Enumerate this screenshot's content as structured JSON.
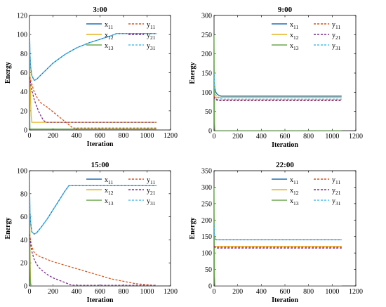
{
  "colors": {
    "x11": "#1f6fb5",
    "x12": "#e6b420",
    "x13": "#6aa84f",
    "y11": "#d9541e",
    "y21": "#7e2f8e",
    "y31": "#4dbeee"
  },
  "chart_data": [
    {
      "type": "line",
      "title": "3:00",
      "xlabel": "Iteration",
      "ylabel": "Energy",
      "xlim": [
        0,
        1200
      ],
      "ylim": [
        0,
        120
      ],
      "xticks": [
        0,
        200,
        400,
        600,
        800,
        1000,
        1200
      ],
      "yticks": [
        0,
        20,
        40,
        60,
        80,
        100,
        120
      ],
      "legend": "top-right",
      "series": [
        {
          "name": "x11",
          "label_base": "x",
          "label_sub": "11",
          "dash": false,
          "color_key": "x11",
          "x": [
            0,
            2,
            4,
            10,
            20,
            40,
            60,
            100,
            150,
            200,
            300,
            400,
            500,
            600,
            700,
            740,
            800,
            900,
            1000,
            1080
          ],
          "y": [
            105,
            95,
            80,
            66,
            57,
            52,
            53,
            58,
            64,
            70,
            79,
            86,
            91,
            95,
            99,
            101,
            101,
            101,
            101,
            101
          ]
        },
        {
          "name": "x12",
          "label_base": "x",
          "label_sub": "12",
          "dash": false,
          "color_key": "x12",
          "x": [
            0,
            2,
            4,
            8,
            10,
            14,
            20,
            40,
            80,
            150,
            200,
            300,
            400,
            500,
            600,
            700,
            800,
            900,
            1000,
            1080
          ],
          "y": [
            100,
            82,
            60,
            40,
            30,
            15,
            8,
            8,
            8,
            8,
            8,
            8,
            8,
            8,
            8,
            8,
            8,
            8,
            8,
            8
          ]
        },
        {
          "name": "x13",
          "label_base": "x",
          "label_sub": "13",
          "dash": false,
          "color_key": "x13",
          "x": [
            0,
            2,
            4,
            6,
            8,
            10,
            12,
            14,
            20,
            40,
            80,
            150,
            300,
            500,
            700,
            900,
            1080
          ],
          "y": [
            105,
            20,
            2,
            1,
            1,
            1,
            1,
            1,
            1,
            1,
            1,
            1,
            1,
            1,
            1,
            1,
            1
          ]
        },
        {
          "name": "y11",
          "label_base": "y",
          "label_sub": "11",
          "dash": true,
          "color_key": "y11",
          "x": [
            0,
            5,
            10,
            20,
            40,
            60,
            80,
            100,
            150,
            200,
            250,
            300,
            350,
            370,
            400,
            500,
            600,
            700,
            800,
            900,
            1000,
            1080
          ],
          "y": [
            56,
            55,
            52,
            48,
            40,
            35,
            31,
            28,
            24,
            19,
            14,
            9,
            4,
            2,
            2,
            2,
            2,
            2,
            2,
            2,
            2,
            2
          ]
        },
        {
          "name": "y21",
          "label_base": "y",
          "label_sub": "21",
          "dash": true,
          "color_key": "y21",
          "x": [
            0,
            5,
            10,
            20,
            40,
            60,
            80,
            100,
            120,
            140,
            150,
            200,
            300,
            400,
            500,
            600,
            700,
            800,
            900,
            1000,
            1080
          ],
          "y": [
            55,
            52,
            48,
            42,
            32,
            25,
            19,
            14,
            10,
            8,
            8,
            8,
            8,
            8,
            8,
            8,
            8,
            8,
            8,
            8,
            8
          ]
        },
        {
          "name": "y31",
          "label_base": "y",
          "label_sub": "31",
          "dash": true,
          "color_key": "y31",
          "x": [
            0,
            2,
            4,
            10,
            20,
            40,
            60,
            100,
            150,
            200,
            300,
            400,
            500,
            600,
            700,
            740,
            800,
            900,
            1000,
            1080
          ],
          "y": [
            105,
            95,
            80,
            66,
            57,
            52,
            53,
            58,
            64,
            70,
            79,
            86,
            91,
            95,
            99,
            101,
            101,
            101,
            101,
            101
          ]
        }
      ]
    },
    {
      "type": "line",
      "title": "9:00",
      "xlabel": "Iteration",
      "ylabel": "Energy",
      "xlim": [
        0,
        1200
      ],
      "ylim": [
        0,
        300
      ],
      "xticks": [
        0,
        200,
        400,
        600,
        800,
        1000,
        1200
      ],
      "yticks": [
        0,
        50,
        100,
        150,
        200,
        250,
        300
      ],
      "legend": "top-right",
      "series": [
        {
          "name": "x11",
          "label_base": "x",
          "label_sub": "11",
          "dash": false,
          "color_key": "x11",
          "x": [
            0,
            2,
            5,
            10,
            20,
            40,
            60,
            80,
            200,
            500,
            800,
            1080
          ],
          "y": [
            150,
            130,
            115,
            105,
            97,
            92,
            90,
            90,
            90,
            90,
            90,
            90
          ]
        },
        {
          "name": "x12",
          "label_base": "x",
          "label_sub": "12",
          "dash": false,
          "color_key": "x12",
          "x": [
            0,
            2,
            5,
            10,
            20,
            40,
            60,
            200,
            500,
            800,
            1080
          ],
          "y": [
            90,
            88,
            87,
            87,
            87,
            87,
            87,
            87,
            87,
            87,
            87
          ]
        },
        {
          "name": "x13",
          "label_base": "x",
          "label_sub": "13",
          "dash": false,
          "color_key": "x13",
          "x": [
            0,
            2,
            4,
            6,
            8,
            10,
            14,
            20,
            40,
            200,
            500,
            800,
            1080
          ],
          "y": [
            250,
            120,
            20,
            3,
            0,
            0,
            0,
            0,
            0,
            0,
            0,
            0,
            0
          ]
        },
        {
          "name": "y11",
          "label_base": "y",
          "label_sub": "11",
          "dash": true,
          "color_key": "y11",
          "x": [
            0,
            5,
            10,
            20,
            40,
            60,
            80,
            200,
            500,
            800,
            1080
          ],
          "y": [
            90,
            86,
            84,
            82,
            80,
            80,
            80,
            80,
            80,
            80,
            80
          ]
        },
        {
          "name": "y21",
          "label_base": "y",
          "label_sub": "21",
          "dash": true,
          "color_key": "y21",
          "x": [
            0,
            5,
            10,
            20,
            40,
            60,
            80,
            200,
            500,
            800,
            1080
          ],
          "y": [
            88,
            84,
            82,
            80,
            78,
            78,
            78,
            78,
            78,
            78,
            78
          ]
        },
        {
          "name": "y31",
          "label_base": "y",
          "label_sub": "31",
          "dash": true,
          "color_key": "y31",
          "x": [
            0,
            2,
            5,
            10,
            20,
            40,
            60,
            80,
            200,
            500,
            800,
            1080
          ],
          "y": [
            150,
            128,
            110,
            98,
            90,
            85,
            83,
            82,
            82,
            82,
            82,
            82
          ]
        }
      ]
    },
    {
      "type": "line",
      "title": "15:00",
      "xlabel": "Iteration",
      "ylabel": "Energy",
      "xlim": [
        0,
        1200
      ],
      "ylim": [
        0,
        100
      ],
      "xticks": [
        0,
        200,
        400,
        600,
        800,
        1000,
        1200
      ],
      "yticks": [
        0,
        20,
        40,
        60,
        80,
        100
      ],
      "legend": "top-right",
      "series": [
        {
          "name": "x11",
          "label_base": "x",
          "label_sub": "11",
          "dash": false,
          "color_key": "x11",
          "x": [
            0,
            2,
            4,
            10,
            20,
            40,
            60,
            100,
            150,
            200,
            250,
            300,
            335,
            400,
            500,
            700,
            900,
            1080
          ],
          "y": [
            92,
            80,
            65,
            55,
            47,
            45,
            46,
            51,
            58,
            66,
            74,
            82,
            87,
            87,
            87,
            87,
            87,
            87
          ]
        },
        {
          "name": "x12",
          "label_base": "x",
          "label_sub": "12",
          "dash": false,
          "color_key": "x12",
          "x": [
            0,
            2,
            4,
            6,
            8,
            10,
            14,
            20,
            40,
            200,
            500,
            800,
            1080
          ],
          "y": [
            92,
            70,
            40,
            20,
            8,
            3,
            1,
            0,
            0,
            0,
            0,
            0,
            0
          ]
        },
        {
          "name": "x13",
          "label_base": "x",
          "label_sub": "13",
          "dash": false,
          "color_key": "x13",
          "x": [
            0,
            2,
            4,
            6,
            8,
            10,
            14,
            20,
            40,
            200,
            500,
            800,
            1080
          ],
          "y": [
            92,
            60,
            25,
            8,
            2,
            0,
            0,
            0,
            0,
            0,
            0,
            0,
            0
          ]
        },
        {
          "name": "y11",
          "label_base": "y",
          "label_sub": "11",
          "dash": true,
          "color_key": "y11",
          "x": [
            0,
            5,
            10,
            20,
            40,
            60,
            80,
            100,
            150,
            200,
            300,
            400,
            500,
            600,
            700,
            800,
            900,
            1000,
            1050,
            1080
          ],
          "y": [
            45,
            42,
            39,
            34,
            29,
            27,
            26,
            25,
            23,
            21,
            18,
            15,
            12,
            9,
            6,
            4,
            2,
            1,
            0.5,
            0.5
          ]
        },
        {
          "name": "y21",
          "label_base": "y",
          "label_sub": "21",
          "dash": true,
          "color_key": "y21",
          "x": [
            0,
            5,
            10,
            20,
            40,
            60,
            80,
            100,
            150,
            200,
            250,
            300,
            350,
            380,
            400,
            500,
            700,
            900,
            1080
          ],
          "y": [
            45,
            40,
            36,
            30,
            23,
            19,
            16,
            14,
            10,
            7,
            5,
            3,
            1,
            0.5,
            0.5,
            0.5,
            0.5,
            0.5,
            0.5
          ]
        },
        {
          "name": "y31",
          "label_base": "y",
          "label_sub": "31",
          "dash": true,
          "color_key": "y31",
          "x": [
            0,
            2,
            4,
            10,
            20,
            40,
            60,
            100,
            150,
            200,
            250,
            300,
            335,
            400,
            500,
            700,
            900,
            1080
          ],
          "y": [
            92,
            80,
            65,
            55,
            47,
            45,
            46,
            51,
            58,
            66,
            74,
            82,
            87,
            87,
            87,
            87,
            87,
            87
          ]
        }
      ]
    },
    {
      "type": "line",
      "title": "22:00",
      "xlabel": "Iteration",
      "ylabel": "Energy",
      "xlim": [
        0,
        1200
      ],
      "ylim": [
        0,
        350
      ],
      "xticks": [
        0,
        200,
        400,
        600,
        800,
        1000,
        1200
      ],
      "yticks": [
        0,
        50,
        100,
        150,
        200,
        250,
        300,
        350
      ],
      "legend": "top-right",
      "series": [
        {
          "name": "x11",
          "label_base": "x",
          "label_sub": "11",
          "dash": false,
          "color_key": "x11",
          "x": [
            0,
            2,
            5,
            10,
            20,
            40,
            60,
            200,
            500,
            800,
            1080
          ],
          "y": [
            190,
            160,
            150,
            142,
            140,
            140,
            140,
            140,
            140,
            140,
            140
          ]
        },
        {
          "name": "x12",
          "label_base": "x",
          "label_sub": "12",
          "dash": false,
          "color_key": "x12",
          "x": [
            0,
            2,
            5,
            10,
            20,
            40,
            200,
            500,
            800,
            1080
          ],
          "y": [
            125,
            122,
            121,
            120,
            120,
            120,
            120,
            120,
            120,
            120
          ]
        },
        {
          "name": "x13",
          "label_base": "x",
          "label_sub": "13",
          "dash": false,
          "color_key": "x13",
          "x": [
            0,
            2,
            4,
            6,
            8,
            10,
            14,
            20,
            40,
            200,
            500,
            800,
            1080
          ],
          "y": [
            300,
            140,
            30,
            5,
            0,
            0,
            0,
            0,
            0,
            0,
            0,
            0,
            0
          ]
        },
        {
          "name": "y11",
          "label_base": "y",
          "label_sub": "11",
          "dash": true,
          "color_key": "y11",
          "x": [
            0,
            5,
            10,
            20,
            40,
            200,
            500,
            800,
            1080
          ],
          "y": [
            122,
            120,
            119,
            118,
            118,
            118,
            118,
            118,
            118
          ]
        },
        {
          "name": "y21",
          "label_base": "y",
          "label_sub": "21",
          "dash": true,
          "color_key": "y21",
          "x": [
            0,
            5,
            10,
            20,
            40,
            200,
            500,
            800,
            1080
          ],
          "y": [
            120,
            118,
            116,
            115,
            115,
            115,
            115,
            115,
            115
          ]
        },
        {
          "name": "y31",
          "label_base": "y",
          "label_sub": "31",
          "dash": true,
          "color_key": "y31",
          "x": [
            0,
            2,
            5,
            10,
            20,
            40,
            60,
            200,
            500,
            800,
            1080
          ],
          "y": [
            190,
            160,
            150,
            142,
            140,
            140,
            140,
            140,
            140,
            140,
            140
          ]
        }
      ]
    }
  ]
}
